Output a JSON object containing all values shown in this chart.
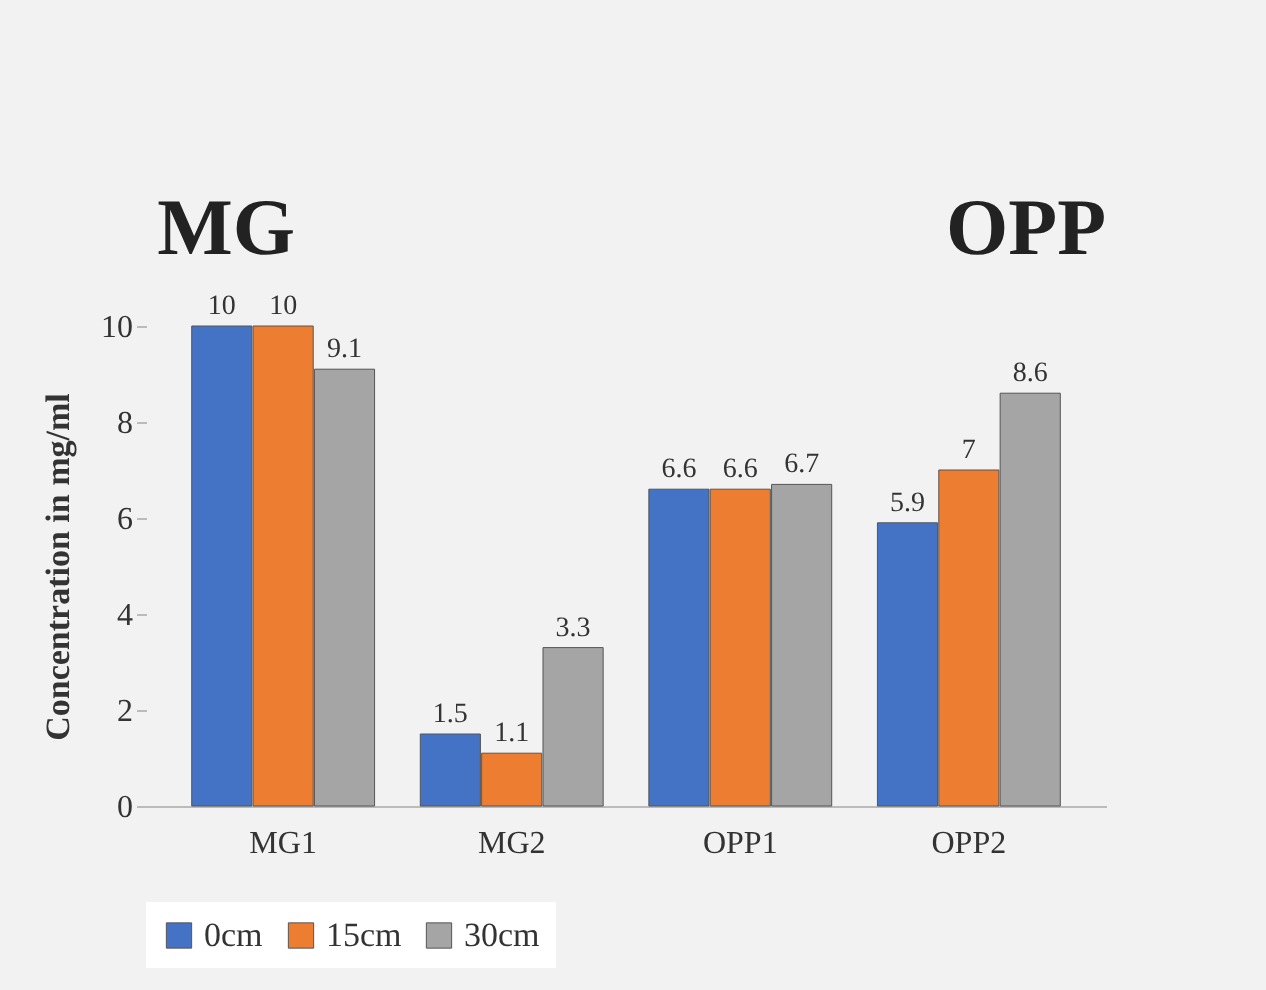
{
  "chart_data": {
    "type": "bar",
    "ylabel": "Concentration in mg/ml",
    "annotations": [
      "MG",
      "OPP"
    ],
    "categories": [
      "MG1",
      "MG2",
      "OPP1",
      "OPP2"
    ],
    "series": [
      {
        "name": "0cm",
        "color": "#4472c4",
        "values": [
          10,
          1.5,
          6.6,
          5.9
        ]
      },
      {
        "name": "15cm",
        "color": "#ed7d31",
        "values": [
          10,
          1.1,
          6.6,
          7
        ]
      },
      {
        "name": "30cm",
        "color": "#a5a5a5",
        "values": [
          9.1,
          3.3,
          6.7,
          8.6
        ]
      }
    ],
    "ylim": [
      0,
      10
    ],
    "yticks": [
      0,
      2,
      4,
      6,
      8,
      10
    ],
    "data_labels": true,
    "legend": "bottom",
    "grid": false
  }
}
